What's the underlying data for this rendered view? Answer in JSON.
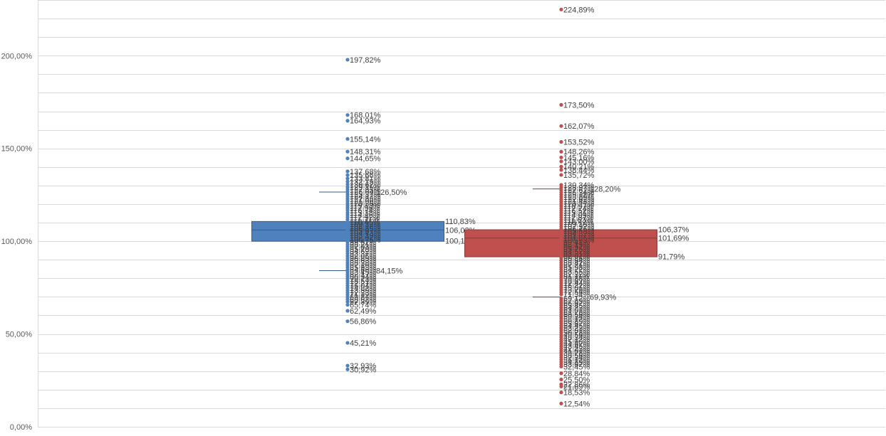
{
  "chart_data": {
    "type": "box",
    "title": "",
    "xlabel": "",
    "ylabel": "",
    "ylim": [
      0,
      2.3
    ],
    "yticks": [
      {
        "value": 0,
        "label": "0,00%"
      },
      {
        "value": 0.5,
        "label": "50,00%"
      },
      {
        "value": 1.0,
        "label": "100,00%"
      },
      {
        "value": 1.5,
        "label": "150,00%"
      },
      {
        "value": 2.0,
        "label": "200,00%"
      }
    ],
    "minor_gridline_step": 0.1,
    "grid": true,
    "legend": "none",
    "series": [
      {
        "color": "#4f81bd",
        "box_fill": "#4f81bd",
        "box_stroke": "#385d8a",
        "q1": 1.0018,
        "median": 1.0602,
        "q3": 1.1083,
        "whisker_high": 1.265,
        "whisker_low": 0.8415,
        "box_labels": [
          "110,83%",
          "106,02%",
          "100,18%"
        ],
        "whisker_high_label": "126,50%",
        "whisker_low_label": "84,15%",
        "points": [
          1.9782,
          1.6801,
          1.6493,
          1.5514,
          1.4831,
          1.4465,
          1.3768,
          1.3566,
          1.3381,
          1.3215,
          1.3062,
          1.2911,
          1.2783,
          1.2664,
          1.2537,
          1.2412,
          1.2283,
          1.2166,
          1.2036,
          1.1913,
          1.1798,
          1.1674,
          1.1538,
          1.1416,
          1.1292,
          1.1171,
          1.1045,
          1.0932,
          1.0812,
          1.0689,
          1.0567,
          1.0443,
          1.0319,
          1.0202,
          1.0075,
          0.9952,
          0.9821,
          0.9703,
          0.9578,
          0.9462,
          0.9337,
          0.9206,
          0.9085,
          0.8963,
          0.8838,
          0.8716,
          0.8593,
          0.8466,
          0.8345,
          0.8217,
          0.8094,
          0.7973,
          0.7851,
          0.7727,
          0.7604,
          0.7482,
          0.7359,
          0.7233,
          0.7112,
          0.6987,
          0.6862,
          0.6739,
          0.6574,
          0.6249,
          0.5686,
          0.4521,
          0.3293,
          0.3092
        ],
        "point_labels": [
          "197,82%",
          "168,01%",
          "164,93%",
          "155,14%",
          "148,31%",
          "144,65%",
          "137,68%",
          "135,66%",
          "133,81%",
          "132,15%",
          "130,62%",
          "129,11%",
          "127,83%",
          "126,64%",
          "125,37%",
          "124,12%",
          "122,83%",
          "121,66%",
          "120,36%",
          "119,13%",
          "117,98%",
          "116,74%",
          "115,38%",
          "114,16%",
          "112,92%",
          "111,71%",
          "110,45%",
          "109,32%",
          "108,12%",
          "106,89%",
          "105,67%",
          "104,43%",
          "103,19%",
          "102,02%",
          "100,75%",
          "99,52%",
          "98,21%",
          "97,03%",
          "95,78%",
          "94,62%",
          "93,37%",
          "92,06%",
          "90,85%",
          "89,63%",
          "88,38%",
          "87,16%",
          "85,93%",
          "84,66%",
          "83,45%",
          "82,17%",
          "80,94%",
          "79,73%",
          "78,51%",
          "77,27%",
          "76,04%",
          "74,82%",
          "73,59%",
          "72,33%",
          "71,12%",
          "69,87%",
          "68,62%",
          "67,39%",
          "65,74%",
          "62,49%",
          "56,86%",
          "45,21%",
          "32,93%",
          "30,92%"
        ]
      },
      {
        "color": "#c0504d",
        "box_fill": "#c0504d",
        "box_stroke": "#8c3836",
        "q1": 0.9179,
        "median": 1.0169,
        "q3": 1.0637,
        "whisker_high": 1.282,
        "whisker_low": 0.6993,
        "box_labels": [
          "106,37%",
          "101,69%",
          "91,79%"
        ],
        "whisker_high_label": "128,20%",
        "whisker_low_label": "69,93%",
        "points": [
          2.2489,
          1.735,
          1.6207,
          1.5352,
          1.4826,
          1.4516,
          1.43,
          1.4021,
          1.3844,
          1.3572,
          1.3034,
          1.2897,
          1.2762,
          1.2634,
          1.2511,
          1.2389,
          1.2262,
          1.2143,
          1.2021,
          1.1897,
          1.1774,
          1.1652,
          1.1531,
          1.1409,
          1.1287,
          1.1163,
          1.1042,
          1.0918,
          1.0797,
          1.0676,
          1.0553,
          1.0432,
          1.0307,
          1.0186,
          1.0063,
          0.9941,
          0.9819,
          0.9697,
          0.9575,
          0.9452,
          0.9331,
          0.9207,
          0.9086,
          0.8964,
          0.8842,
          0.8721,
          0.8598,
          0.8477,
          0.8355,
          0.8232,
          0.8111,
          0.7988,
          0.7867,
          0.7744,
          0.7622,
          0.7501,
          0.7379,
          0.7256,
          0.7134,
          0.6912,
          0.6789,
          0.6667,
          0.6545,
          0.6423,
          0.6301,
          0.6178,
          0.6056,
          0.5934,
          0.5812,
          0.5689,
          0.5567,
          0.5445,
          0.5323,
          0.5201,
          0.5078,
          0.4956,
          0.4834,
          0.4712,
          0.459,
          0.4467,
          0.4345,
          0.4223,
          0.4101,
          0.3978,
          0.3856,
          0.3734,
          0.3612,
          0.3489,
          0.3367,
          0.3245,
          0.2884,
          0.255,
          0.2286,
          0.2169,
          0.1853,
          0.1254
        ],
        "point_labels": [
          "224,89%",
          "173,50%",
          "162,07%",
          "153,52%",
          "148,26%",
          "145,16%",
          "143,00%",
          "140,21%",
          "138,44%",
          "135,72%",
          "130,34%",
          "128,97%",
          "127,62%",
          "126,34%",
          "125,11%",
          "123,89%",
          "122,62%",
          "121,43%",
          "120,21%",
          "118,97%",
          "117,74%",
          "116,52%",
          "115,31%",
          "114,09%",
          "112,87%",
          "111,63%",
          "110,42%",
          "109,18%",
          "107,97%",
          "106,76%",
          "105,53%",
          "104,32%",
          "103,07%",
          "101,86%",
          "100,63%",
          "99,41%",
          "98,19%",
          "96,97%",
          "95,75%",
          "94,52%",
          "93,31%",
          "92,07%",
          "90,86%",
          "89,64%",
          "88,42%",
          "87,21%",
          "85,98%",
          "84,77%",
          "83,55%",
          "82,32%",
          "81,11%",
          "79,88%",
          "78,67%",
          "77,44%",
          "76,22%",
          "75,01%",
          "73,79%",
          "72,56%",
          "71,34%",
          "69,12%",
          "67,89%",
          "66,67%",
          "65,45%",
          "64,23%",
          "63,01%",
          "61,78%",
          "60,56%",
          "59,34%",
          "58,12%",
          "56,89%",
          "55,67%",
          "54,45%",
          "53,23%",
          "52,01%",
          "50,78%",
          "49,56%",
          "48,34%",
          "47,12%",
          "45,90%",
          "44,67%",
          "43,45%",
          "42,23%",
          "41,01%",
          "39,78%",
          "38,56%",
          "37,34%",
          "36,12%",
          "34,89%",
          "33,67%",
          "32,45%",
          "28,84%",
          "25,50%",
          "22,86%",
          "21,69%",
          "18,53%",
          "12,54%"
        ]
      }
    ]
  }
}
